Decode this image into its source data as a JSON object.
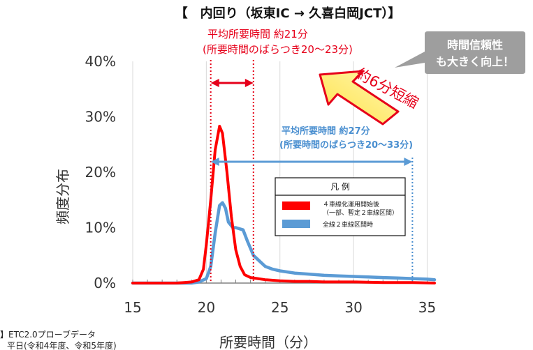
{
  "chart_data": {
    "type": "line",
    "title": "【　内回り（坂東IC → 久喜白岡JCT）】",
    "xlabel": "所要時間（分）",
    "ylabel": "頻度分布",
    "xlim": [
      15,
      35.5
    ],
    "ylim": [
      0,
      40
    ],
    "xticks": [
      "15",
      "20",
      "25",
      "30",
      "35"
    ],
    "yticks": [
      "0%",
      "10%",
      "20%",
      "30%",
      "40%"
    ],
    "grid": "vertical",
    "legend": {
      "title": "凡 例",
      "placement": "center-right",
      "items": [
        {
          "label_line1": "４車線化運用開始後",
          "label_line2": "（一部、暫定２車線区間）",
          "color": "#ff0000"
        },
        {
          "label_line1": "全線２車線区間時",
          "label_line2": "",
          "color": "#5b9bd5"
        }
      ]
    },
    "series": [
      {
        "name": "４車線化運用開始後（一部、暫定２車線区間）",
        "color": "#ff0000",
        "x": [
          15,
          16,
          17,
          18,
          18.5,
          19,
          19.5,
          19.8,
          20,
          20.3,
          20.6,
          20.9,
          21.1,
          21.4,
          21.7,
          22,
          22.3,
          22.6,
          23,
          23.5,
          24,
          25,
          26,
          27,
          28,
          30,
          32,
          34,
          35.5
        ],
        "y": [
          0,
          0,
          0,
          0,
          0.1,
          0.2,
          0.6,
          2.5,
          7,
          15,
          24,
          28.3,
          27,
          20,
          12,
          6,
          3,
          1.5,
          1,
          0.8,
          0.6,
          0.4,
          0.3,
          0.3,
          0.2,
          0.2,
          0.1,
          0.1,
          0
        ]
      },
      {
        "name": "全線２車線区間時",
        "color": "#5b9bd5",
        "x": [
          15,
          19,
          19.5,
          20,
          20.3,
          20.6,
          20.9,
          21.1,
          21.3,
          21.5,
          21.8,
          22,
          22.5,
          22.8,
          23.2,
          23.6,
          24,
          24.5,
          25,
          26,
          27,
          28,
          29,
          30,
          31,
          32,
          33,
          34,
          35,
          35.5
        ],
        "y": [
          0,
          0,
          0.2,
          0.8,
          3,
          9,
          14,
          14.5,
          13.5,
          11,
          10,
          10,
          9.6,
          7.5,
          5,
          4,
          3,
          2.5,
          2.2,
          1.8,
          1.6,
          1.4,
          1.3,
          1.2,
          1.1,
          1,
          0.9,
          0.8,
          0.7,
          0.6
        ]
      }
    ],
    "annotations": {
      "red_text_1": "平均所要時間 約21分",
      "red_text_2": "(所要時間のばらつき20～23分)",
      "red_range": [
        20.3,
        23.2
      ],
      "blue_text_1": "平均所要時間 約27分",
      "blue_text_2": "(所要時間のばらつき20～33分)",
      "blue_range": [
        20.3,
        34
      ],
      "shortening": "約6分短縮",
      "bubble_line1": "時間信頼性",
      "bubble_line2": "も大きく向上！"
    }
  },
  "source_line1": "】ETC2.0プローブデータ",
  "source_line2": "平日(令和4年度、令和5年度)"
}
